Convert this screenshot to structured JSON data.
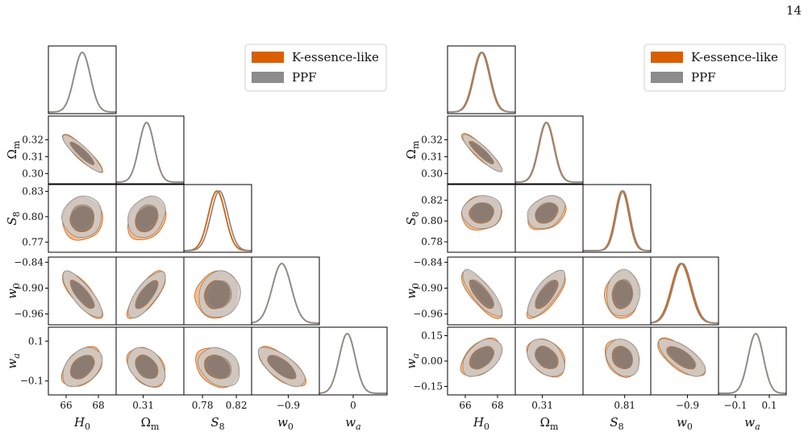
{
  "page_number": "14",
  "colors": {
    "k_essence": "#d95f02",
    "k_essence_light": "#f3b07c",
    "ppf": "#8c8c8c",
    "ppf_light": "#c9c9c9",
    "inner_fill": "#8a7a70",
    "outer_fill": "#c9bfb8"
  },
  "chart_data": [
    {
      "type": "corner",
      "parameters": [
        {
          "symbol": "H",
          "sub": "0",
          "ticks": [
            66,
            68
          ],
          "tick_labels": [
            "66",
            "68"
          ],
          "range": [
            64.9,
            69.1
          ],
          "mean_k": 67.0,
          "mean_p": 67.0,
          "sd": 0.5
        },
        {
          "symbol": "Ω",
          "sub": "m",
          "ticks": [
            0.3,
            0.31,
            0.32
          ],
          "tick_labels": [
            "0.30",
            "0.31",
            "0.32"
          ],
          "range": [
            0.294,
            0.334
          ],
          "mean_k": 0.312,
          "mean_p": 0.312,
          "sd": 0.0045
        },
        {
          "symbol": "S",
          "sub": "8",
          "ticks": [
            0.77,
            0.8,
            0.83
          ],
          "tick_labels": [
            "0.77",
            "0.80",
            "0.83"
          ],
          "range": [
            0.758,
            0.838
          ],
          "mean_k": 0.797,
          "mean_p": 0.8,
          "sd": 0.01
        },
        {
          "symbol": "w",
          "sub": "0",
          "ticks": [
            -0.96,
            -0.9,
            -0.84
          ],
          "tick_labels": [
            "−0.96",
            "−0.90",
            "−0.84"
          ],
          "range": [
            -0.985,
            -0.828
          ],
          "mean_k": -0.915,
          "mean_p": -0.915,
          "sd": 0.022
        },
        {
          "symbol": "w",
          "sub": "a",
          "ticks": [
            -0.1,
            0.1
          ],
          "tick_labels": [
            "−0.1",
            "0.1"
          ],
          "range": [
            -0.17,
            0.17
          ],
          "mean_k": -0.03,
          "mean_p": -0.03,
          "sd": 0.04
        }
      ],
      "x_tick_labels": [
        {
          "ticks": [
            66,
            68
          ],
          "labels": [
            "66",
            "68"
          ]
        },
        {
          "ticks": [
            0.31
          ],
          "labels": [
            "0.31"
          ]
        },
        {
          "ticks": [
            0.78,
            0.82
          ],
          "labels": [
            "0.78",
            "0.82"
          ]
        },
        {
          "ticks": [
            -0.9
          ],
          "labels": [
            "−0.9"
          ]
        },
        {
          "ticks": [
            0
          ],
          "labels": [
            "0"
          ]
        }
      ],
      "correlations": [
        [
          0
        ],
        [
          -0.9
        ],
        [
          0.05,
          0.25
        ],
        [
          -0.8,
          0.75,
          0.1
        ],
        [
          0.4,
          -0.35,
          -0.25,
          -0.7
        ]
      ],
      "legend": [
        {
          "label": "K-essence-like",
          "color_key": "k_essence"
        },
        {
          "label": "PPF",
          "color_key": "ppf"
        }
      ]
    },
    {
      "type": "corner",
      "parameters": [
        {
          "symbol": "H",
          "sub": "0",
          "ticks": [
            66,
            68
          ],
          "tick_labels": [
            "66",
            "68"
          ],
          "range": [
            64.9,
            69.1
          ],
          "mean_k": 67.0,
          "mean_p": 67.05,
          "sd": 0.5
        },
        {
          "symbol": "Ω",
          "sub": "m",
          "ticks": [
            0.3,
            0.31,
            0.32
          ],
          "tick_labels": [
            "0.30",
            "0.31",
            "0.32"
          ],
          "range": [
            0.294,
            0.334
          ],
          "mean_k": 0.3125,
          "mean_p": 0.3122,
          "sd": 0.0045
        },
        {
          "symbol": "S",
          "sub": "8",
          "ticks": [
            0.78,
            0.8,
            0.82
          ],
          "tick_labels": [
            "0.78",
            "0.80",
            "0.82"
          ],
          "range": [
            0.77,
            0.835
          ],
          "mean_k": 0.8075,
          "mean_p": 0.8085,
          "sd": 0.0065
        },
        {
          "symbol": "w",
          "sub": "0",
          "ticks": [
            -0.96,
            -0.9,
            -0.84
          ],
          "tick_labels": [
            "−0.96",
            "−0.90",
            "−0.84"
          ],
          "range": [
            -0.985,
            -0.828
          ],
          "mean_k": -0.915,
          "mean_p": -0.912,
          "sd": 0.022
        },
        {
          "symbol": "w",
          "sub": "a",
          "ticks": [
            -0.15,
            0.0,
            0.15
          ],
          "tick_labels": [
            "−0.15",
            "0.00",
            "0.15"
          ],
          "range": [
            -0.2,
            0.2
          ],
          "mean_k": 0.02,
          "mean_p": 0.02,
          "sd": 0.045
        }
      ],
      "x_tick_labels": [
        {
          "ticks": [
            66,
            68
          ],
          "labels": [
            "66",
            "68"
          ]
        },
        {
          "ticks": [
            0.31
          ],
          "labels": [
            "0.31"
          ]
        },
        {
          "ticks": [
            0.81
          ],
          "labels": [
            "0.81"
          ]
        },
        {
          "ticks": [
            -0.9
          ],
          "labels": [
            "−0.9"
          ]
        },
        {
          "ticks": [
            -0.1,
            0.1
          ],
          "labels": [
            "−0.1",
            "0.1"
          ]
        }
      ],
      "correlations": [
        [
          0
        ],
        [
          -0.9
        ],
        [
          0.05,
          0.3
        ],
        [
          -0.8,
          0.75,
          0.05
        ],
        [
          0.45,
          -0.35,
          -0.2,
          -0.7
        ]
      ],
      "legend": [
        {
          "label": "K-essence-like",
          "color_key": "k_essence"
        },
        {
          "label": "PPF",
          "color_key": "ppf"
        }
      ]
    }
  ]
}
